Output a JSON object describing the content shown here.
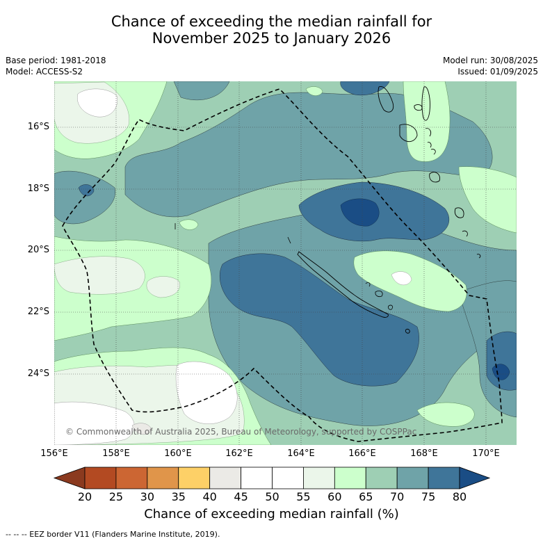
{
  "title_line1": "Chance of exceeding the median rainfall for",
  "title_line2": "November 2025 to January 2026",
  "base_period": "Base period: 1981-2018",
  "model": "Model: ACCESS-S2",
  "model_run": "Model run: 30/08/2025",
  "issued": "Issued: 01/09/2025",
  "copyright": "© Commonwealth of Australia 2025, Bureau of Meteorology, supported by COSPPac",
  "lat_labels": [
    "16°S",
    "18°S",
    "20°S",
    "22°S",
    "24°S"
  ],
  "lon_labels": [
    "156°E",
    "158°E",
    "160°E",
    "162°E",
    "164°E",
    "166°E",
    "168°E",
    "170°E"
  ],
  "colorbar": {
    "title": "Chance of exceeding median rainfall (%)",
    "ticks": [
      "20",
      "25",
      "30",
      "35",
      "40",
      "45",
      "50",
      "55",
      "60",
      "65",
      "70",
      "75",
      "80"
    ],
    "colors": [
      "#8b3a1f",
      "#b34a22",
      "#cc6633",
      "#e0954a",
      "#fdd067",
      "#ebeae6",
      "#ffffff",
      "#ffffff",
      "#ebf6ea",
      "#ccffcc",
      "#9ecfb4",
      "#6fa3a8",
      "#3f7599",
      "#1a4d85"
    ]
  },
  "footnote": "-- -- -- EEZ border V11 (Flanders Marine Institute, 2019)."
}
